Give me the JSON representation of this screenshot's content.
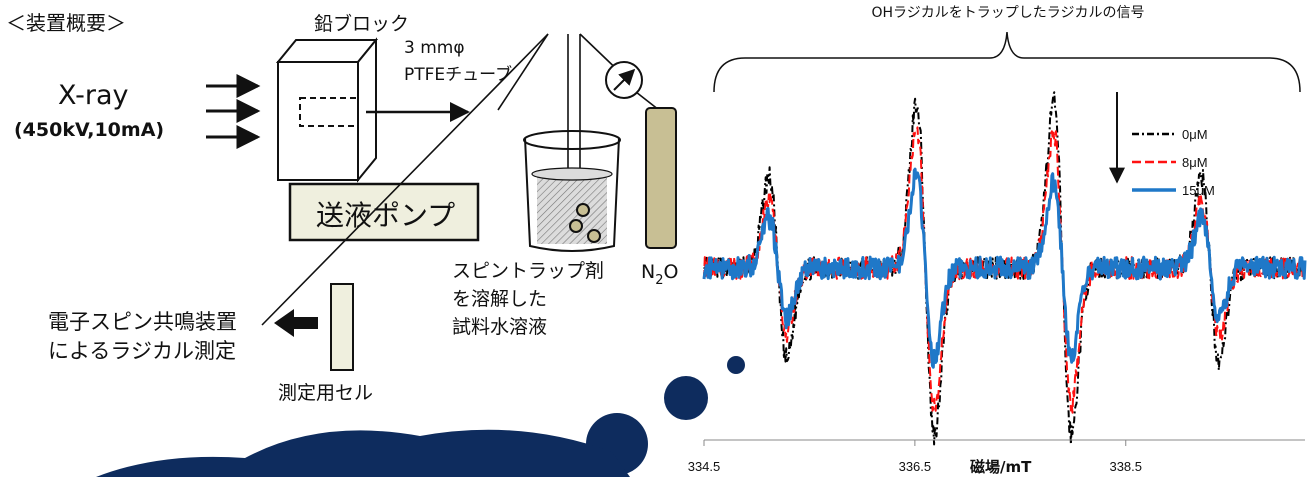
{
  "colors": {
    "ink": "#111111",
    "pump_fill": "#efefde",
    "tank_fill": "#c8bf94",
    "cell_fill": "#efefde",
    "bubble_blue": "#0e2c5e",
    "series_0": "#000000",
    "series_8": "#ff1111",
    "series_15": "#1f78c8"
  },
  "diagram": {
    "section_title": "＜装置概要＞",
    "xray_label": "X-ray",
    "xray_params": "(450kV,10mA)",
    "lead_block_label": "鉛ブロック",
    "tube_label_1": "3 mmφ",
    "tube_label_2": "PTFEチューブ",
    "pump_label": "送液ポンプ",
    "spin_trap_label_1": "スピントラップ剤",
    "spin_trap_label_2": "を溶解した",
    "spin_trap_label_3": "試料水溶液",
    "gas_label": "N",
    "gas_subscript": "2",
    "gas_label_end": "O",
    "esr_label_1": "電子スピン共鳴装置",
    "esr_label_2": "によるラジカル測定",
    "cell_label": "測定用セル"
  },
  "chart_data": {
    "type": "line",
    "title": "OHラジカルをトラップしたラジカルの信号",
    "xlabel": "磁場/mT",
    "ylabel": "",
    "xlim": [
      334.5,
      340.2
    ],
    "ylim": [
      -1.15,
      1.15
    ],
    "x_ticks": [
      334.5,
      336.5,
      338.5
    ],
    "x_tick_labels": [
      "334.5",
      "336.5",
      "338.5"
    ],
    "grid": false,
    "legend_position": "top-right",
    "peaks_mT": [
      335.2,
      336.6,
      337.9,
      339.3
    ],
    "series": [
      {
        "name": "0μM",
        "dash": "dash-dot",
        "amplitudes": [
          0.55,
          1.0,
          1.0,
          0.55
        ]
      },
      {
        "name": "8μM",
        "dash": "dash",
        "amplitudes": [
          0.4,
          0.85,
          0.82,
          0.4
        ]
      },
      {
        "name": "15μM",
        "dash": "solid",
        "amplitudes": [
          0.3,
          0.55,
          0.52,
          0.3
        ]
      }
    ]
  }
}
